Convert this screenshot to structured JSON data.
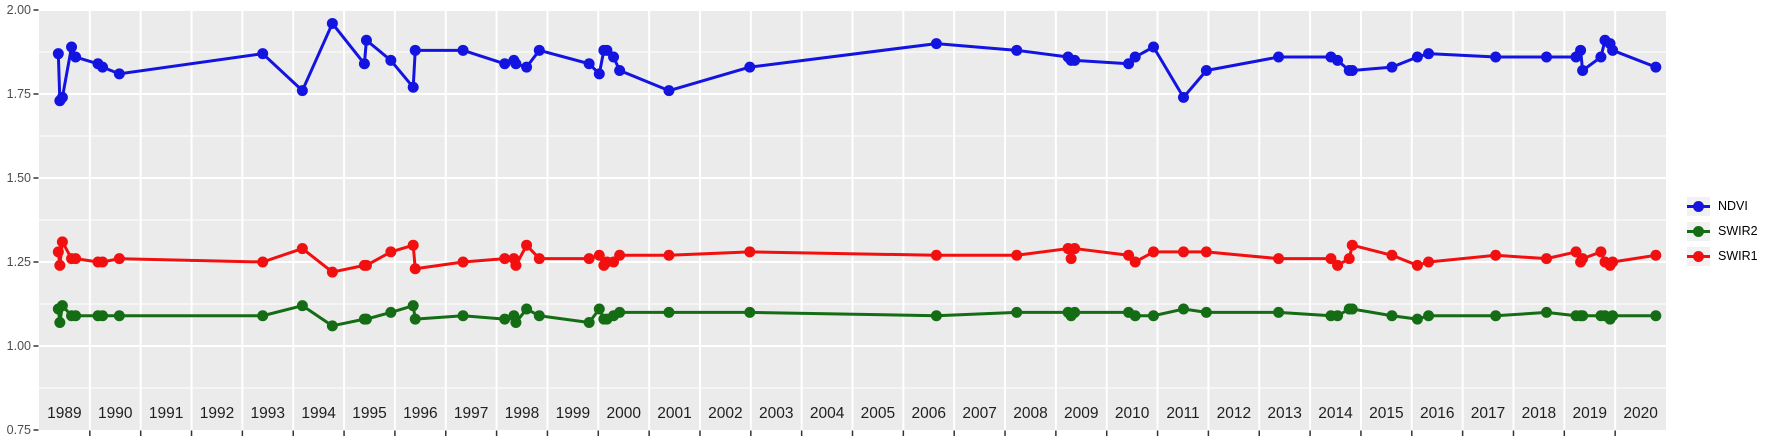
{
  "figure": {
    "background": "#FFFFFF",
    "panel_background": "#EBEBEB",
    "grid_color": "#FFFFFF",
    "tick_color": "#333333",
    "x_axis_text_color": "#1F1F1F",
    "y_axis_text_color": "#4D4D4D",
    "legend_key_background": "#F1F1F1"
  },
  "chart_data": {
    "type": "line",
    "title": "",
    "xlabel": "",
    "ylabel": "",
    "grid": true,
    "legend_position": "right",
    "xlim": [
      1988.5,
      2020.5
    ],
    "ylim": [
      0.75,
      2.0
    ],
    "x_tick_labels": [
      "1989",
      "1990",
      "1991",
      "1992",
      "1993",
      "1994",
      "1995",
      "1996",
      "1997",
      "1998",
      "1999",
      "2000",
      "2001",
      "2002",
      "2003",
      "2004",
      "2005",
      "2006",
      "2007",
      "2008",
      "2009",
      "2010",
      "2011",
      "2012",
      "2013",
      "2014",
      "2015",
      "2016",
      "2017",
      "2018",
      "2019",
      "2020"
    ],
    "x_tick_values": [
      1989,
      1990,
      1991,
      1992,
      1993,
      1994,
      1995,
      1996,
      1997,
      1998,
      1999,
      2000,
      2001,
      2002,
      2003,
      2004,
      2005,
      2006,
      2007,
      2008,
      2009,
      2010,
      2011,
      2012,
      2013,
      2014,
      2015,
      2016,
      2017,
      2018,
      2019,
      2020
    ],
    "y_tick_labels": [
      "2.00",
      "1.75",
      "1.50",
      "1.25",
      "1.00",
      "0.75"
    ],
    "y_tick_values": [
      2.0,
      1.75,
      1.5,
      1.25,
      1.0,
      0.75
    ],
    "y_minor_gridlines": [
      1.875,
      1.625,
      1.375,
      1.125,
      0.875
    ],
    "y_major_gridlines": [
      2.0,
      1.75,
      1.5,
      1.25,
      1.0
    ],
    "x_gridline_boundaries_start": 1989.5,
    "x_gridline_count": 31,
    "x": [
      1988.88,
      1988.91,
      1988.96,
      1989.14,
      1989.22,
      1989.66,
      1989.75,
      1990.08,
      1992.9,
      1993.68,
      1994.27,
      1994.9,
      1994.94,
      1995.42,
      1995.86,
      1995.9,
      1996.84,
      1997.66,
      1997.84,
      1997.88,
      1998.09,
      1998.34,
      1999.32,
      1999.52,
      1999.61,
      1999.67,
      1999.8,
      1999.92,
      2000.89,
      2002.48,
      2006.15,
      2007.73,
      2008.74,
      2008.8,
      2008.87,
      2009.93,
      2010.06,
      2010.42,
      2011.01,
      2011.46,
      2012.88,
      2013.91,
      2014.04,
      2014.27,
      2014.33,
      2015.11,
      2015.61,
      2015.83,
      2017.15,
      2018.15,
      2018.73,
      2018.82,
      2018.86,
      2019.22,
      2019.3,
      2019.4,
      2019.45,
      2020.3
    ],
    "series": [
      {
        "name": "NDVI",
        "color": "#1414E1",
        "values": [
          1.87,
          1.73,
          1.74,
          1.89,
          1.86,
          1.84,
          1.83,
          1.81,
          1.87,
          1.76,
          1.96,
          1.84,
          1.91,
          1.85,
          1.77,
          1.88,
          1.88,
          1.84,
          1.85,
          1.84,
          1.83,
          1.88,
          1.84,
          1.81,
          1.88,
          1.88,
          1.86,
          1.82,
          1.76,
          1.83,
          1.9,
          1.88,
          1.86,
          1.85,
          1.85,
          1.84,
          1.86,
          1.89,
          1.74,
          1.82,
          1.86,
          1.86,
          1.85,
          1.82,
          1.82,
          1.83,
          1.86,
          1.87,
          1.86,
          1.86,
          1.86,
          1.88,
          1.82,
          1.86,
          1.91,
          1.9,
          1.88,
          1.83
        ]
      },
      {
        "name": "SWIR2",
        "color": "#146C14",
        "values": [
          1.11,
          1.07,
          1.12,
          1.09,
          1.09,
          1.09,
          1.09,
          1.09,
          1.09,
          1.12,
          1.06,
          1.08,
          1.08,
          1.1,
          1.12,
          1.08,
          1.09,
          1.08,
          1.09,
          1.07,
          1.11,
          1.09,
          1.07,
          1.11,
          1.08,
          1.08,
          1.09,
          1.1,
          1.1,
          1.1,
          1.09,
          1.1,
          1.1,
          1.09,
          1.1,
          1.1,
          1.09,
          1.09,
          1.11,
          1.1,
          1.1,
          1.09,
          1.09,
          1.11,
          1.11,
          1.09,
          1.08,
          1.09,
          1.09,
          1.1,
          1.09,
          1.09,
          1.09,
          1.09,
          1.09,
          1.08,
          1.09,
          1.09
        ]
      },
      {
        "name": "SWIR1",
        "color": "#F20F0F",
        "values": [
          1.28,
          1.24,
          1.31,
          1.26,
          1.26,
          1.25,
          1.25,
          1.26,
          1.25,
          1.29,
          1.22,
          1.24,
          1.24,
          1.28,
          1.3,
          1.23,
          1.25,
          1.26,
          1.26,
          1.24,
          1.3,
          1.26,
          1.26,
          1.27,
          1.24,
          1.25,
          1.25,
          1.27,
          1.27,
          1.28,
          1.27,
          1.27,
          1.29,
          1.26,
          1.29,
          1.27,
          1.25,
          1.28,
          1.28,
          1.28,
          1.26,
          1.26,
          1.24,
          1.26,
          1.3,
          1.27,
          1.24,
          1.25,
          1.27,
          1.26,
          1.28,
          1.25,
          1.26,
          1.28,
          1.25,
          1.24,
          1.25,
          1.27
        ]
      }
    ]
  },
  "legend": {
    "items": [
      {
        "label": "NDVI"
      },
      {
        "label": "SWIR2"
      },
      {
        "label": "SWIR1"
      }
    ]
  }
}
